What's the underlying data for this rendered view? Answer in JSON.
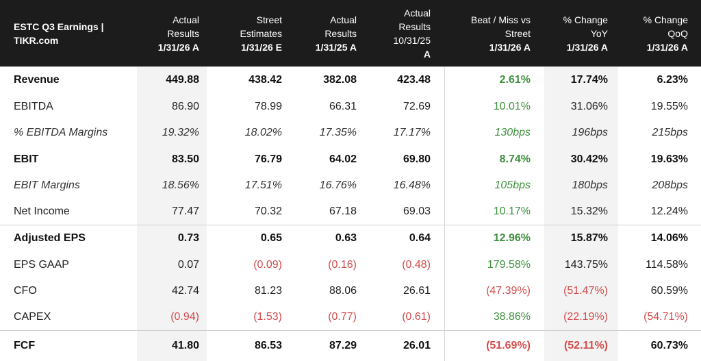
{
  "header": {
    "title_line1": "ESTC Q3 Earnings |",
    "title_line2": "TIKR.com",
    "columns": [
      {
        "lines": [
          "Actual",
          "Results"
        ],
        "date": "1/31/26 A"
      },
      {
        "lines": [
          "Street",
          "Estimates"
        ],
        "date": "1/31/26 E"
      },
      {
        "lines": [
          "Actual",
          "Results"
        ],
        "date": "1/31/25 A"
      },
      {
        "lines": [
          "Actual",
          "Results",
          "10/31/25"
        ],
        "date": "A"
      },
      {
        "lines": [
          "Beat / Miss vs",
          "Street"
        ],
        "date": "1/31/26 A"
      },
      {
        "lines": [
          "% Change",
          "YoY"
        ],
        "date": "1/31/26 A"
      },
      {
        "lines": [
          "% Change",
          "QoQ"
        ],
        "date": "1/31/26 A"
      }
    ]
  },
  "colors": {
    "header_bg": "#1c1c1c",
    "positive": "#3f8f3f",
    "negative": "#d24b4b",
    "shade": "#f3f3f3"
  },
  "rows": [
    {
      "label": "Revenue",
      "style": "bold",
      "values": [
        "449.88",
        "438.42",
        "382.08",
        "423.48",
        "2.61%",
        "17.74%",
        "6.23%"
      ],
      "tone": [
        "",
        "",
        "",
        "",
        "pos",
        "",
        ""
      ]
    },
    {
      "label": "EBITDA",
      "style": "normal",
      "values": [
        "86.90",
        "78.99",
        "66.31",
        "72.69",
        "10.01%",
        "31.06%",
        "19.55%"
      ],
      "tone": [
        "",
        "",
        "",
        "",
        "pos",
        "",
        ""
      ]
    },
    {
      "label": "% EBITDA Margins",
      "style": "ital",
      "values": [
        "19.32%",
        "18.02%",
        "17.35%",
        "17.17%",
        "130bps",
        "196bps",
        "215bps"
      ],
      "tone": [
        "",
        "",
        "",
        "",
        "pos",
        "",
        ""
      ]
    },
    {
      "label": "EBIT",
      "style": "bold",
      "values": [
        "83.50",
        "76.79",
        "64.02",
        "69.80",
        "8.74%",
        "30.42%",
        "19.63%"
      ],
      "tone": [
        "",
        "",
        "",
        "",
        "pos",
        "",
        ""
      ]
    },
    {
      "label": "EBIT Margins",
      "style": "ital",
      "values": [
        "18.56%",
        "17.51%",
        "16.76%",
        "16.48%",
        "105bps",
        "180bps",
        "208bps"
      ],
      "tone": [
        "",
        "",
        "",
        "",
        "pos",
        "",
        ""
      ]
    },
    {
      "label": "Net Income",
      "style": "normal",
      "values": [
        "77.47",
        "70.32",
        "67.18",
        "69.03",
        "10.17%",
        "15.32%",
        "12.24%"
      ],
      "tone": [
        "",
        "",
        "",
        "",
        "pos",
        "",
        ""
      ]
    },
    {
      "label": "Adjusted EPS",
      "style": "bold",
      "values": [
        "0.73",
        "0.65",
        "0.63",
        "0.64",
        "12.96%",
        "15.87%",
        "14.06%"
      ],
      "tone": [
        "",
        "",
        "",
        "",
        "pos",
        "",
        ""
      ]
    },
    {
      "label": "EPS GAAP",
      "style": "normal",
      "values": [
        "0.07",
        "(0.09)",
        "(0.16)",
        "(0.48)",
        "179.58%",
        "143.75%",
        "114.58%"
      ],
      "tone": [
        "",
        "neg",
        "neg",
        "neg",
        "pos",
        "",
        ""
      ]
    },
    {
      "label": "CFO",
      "style": "normal",
      "values": [
        "42.74",
        "81.23",
        "88.06",
        "26.61",
        "(47.39%)",
        "(51.47%)",
        "60.59%"
      ],
      "tone": [
        "",
        "",
        "",
        "",
        "neg",
        "neg",
        ""
      ]
    },
    {
      "label": "CAPEX",
      "style": "normal",
      "values": [
        "(0.94)",
        "(1.53)",
        "(0.77)",
        "(0.61)",
        "38.86%",
        "(22.19%)",
        "(54.71%)"
      ],
      "tone": [
        "neg",
        "neg",
        "neg",
        "neg",
        "pos",
        "neg",
        "neg"
      ]
    },
    {
      "label": "FCF",
      "style": "bold",
      "values": [
        "41.80",
        "86.53",
        "87.29",
        "26.01",
        "(51.69%)",
        "(52.11%)",
        "60.73%"
      ],
      "tone": [
        "",
        "",
        "",
        "",
        "neg",
        "neg",
        ""
      ]
    }
  ]
}
